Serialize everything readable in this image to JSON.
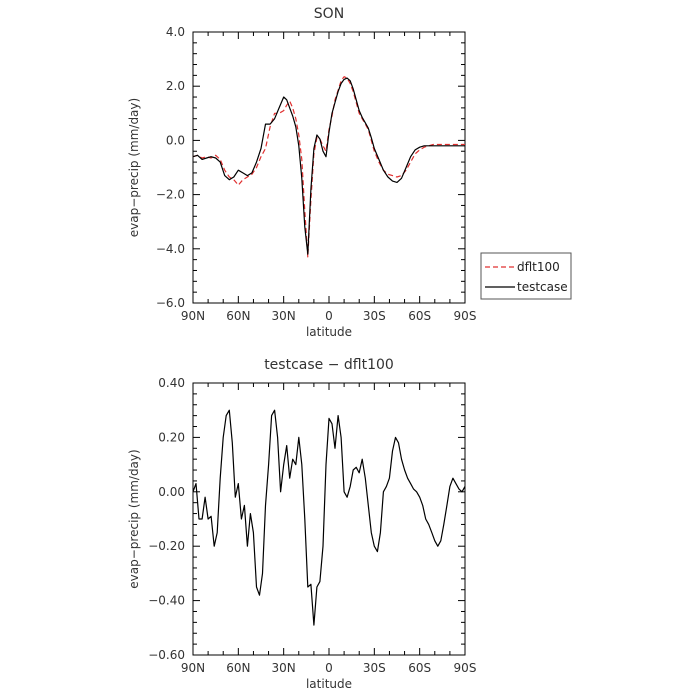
{
  "chart_data": [
    {
      "type": "line",
      "title": "SON",
      "xlabel": "latitude",
      "ylabel": "evap−precip (mm/day)",
      "xlim": [
        90,
        -90
      ],
      "ylim": [
        -6,
        4
      ],
      "xticks": [
        "90N",
        "60N",
        "30N",
        "0",
        "30S",
        "60S",
        "90S"
      ],
      "yticks": [
        "−6.0",
        "−4.0",
        "−2.0",
        "0.0",
        "2.0",
        "4.0"
      ],
      "legend": {
        "position": "outside-right",
        "entries": [
          "dflt100",
          "testcase"
        ]
      },
      "series": [
        {
          "name": "dflt100",
          "style": "dashed",
          "color": "#e03030",
          "x": [
            90,
            87,
            84,
            81,
            78,
            75,
            72,
            69,
            66,
            63,
            60,
            57,
            54,
            51,
            48,
            45,
            42,
            39,
            36,
            33,
            30,
            28,
            26,
            24,
            22,
            20,
            18,
            16,
            14,
            12,
            10,
            8,
            6,
            4,
            2,
            0,
            -2,
            -4,
            -6,
            -8,
            -10,
            -12,
            -14,
            -16,
            -18,
            -20,
            -22,
            -24,
            -26,
            -28,
            -30,
            -33,
            -36,
            -39,
            -42,
            -45,
            -48,
            -51,
            -54,
            -57,
            -60,
            -63,
            -66,
            -69,
            -72,
            -75,
            -78,
            -81,
            -84,
            -87,
            -90
          ],
          "y": [
            -0.6,
            -0.55,
            -0.65,
            -0.6,
            -0.65,
            -0.55,
            -0.7,
            -1.1,
            -1.35,
            -1.45,
            -1.65,
            -1.45,
            -1.35,
            -1.25,
            -1.0,
            -0.6,
            -0.3,
            0.5,
            1.0,
            1.0,
            1.1,
            1.3,
            1.45,
            1.2,
            0.8,
            0.2,
            -0.7,
            -2.6,
            -4.3,
            -2.2,
            -0.5,
            0.1,
            0.05,
            -0.2,
            -0.4,
            0.4,
            0.9,
            1.5,
            1.85,
            2.2,
            2.35,
            2.3,
            2.1,
            1.8,
            1.4,
            1.0,
            0.8,
            0.6,
            0.4,
            0.0,
            -0.4,
            -0.8,
            -1.1,
            -1.25,
            -1.3,
            -1.35,
            -1.3,
            -1.1,
            -0.8,
            -0.5,
            -0.35,
            -0.25,
            -0.2,
            -0.15,
            -0.15,
            -0.15,
            -0.15,
            -0.15,
            -0.15,
            -0.15,
            -0.15
          ]
        },
        {
          "name": "testcase",
          "style": "solid",
          "color": "#000000",
          "x": [
            90,
            87,
            84,
            81,
            78,
            75,
            72,
            69,
            66,
            63,
            60,
            57,
            54,
            51,
            48,
            45,
            42,
            39,
            36,
            33,
            30,
            28,
            26,
            24,
            22,
            20,
            18,
            16,
            14,
            12,
            10,
            8,
            6,
            4,
            2,
            0,
            -2,
            -4,
            -6,
            -8,
            -10,
            -12,
            -14,
            -16,
            -18,
            -20,
            -22,
            -24,
            -26,
            -28,
            -30,
            -33,
            -36,
            -39,
            -42,
            -45,
            -48,
            -51,
            -54,
            -57,
            -60,
            -63,
            -66,
            -69,
            -72,
            -75,
            -78,
            -81,
            -84,
            -87,
            -90
          ],
          "y": [
            -0.6,
            -0.55,
            -0.7,
            -0.65,
            -0.6,
            -0.65,
            -0.8,
            -1.3,
            -1.45,
            -1.35,
            -1.1,
            -1.2,
            -1.3,
            -1.2,
            -0.8,
            -0.3,
            0.6,
            0.6,
            0.8,
            1.2,
            1.6,
            1.5,
            1.2,
            0.9,
            0.5,
            -0.2,
            -1.4,
            -3.2,
            -4.2,
            -1.8,
            -0.3,
            0.2,
            0.05,
            -0.4,
            -0.6,
            0.3,
            1.0,
            1.4,
            1.8,
            2.1,
            2.25,
            2.3,
            2.2,
            1.9,
            1.5,
            1.1,
            0.85,
            0.65,
            0.45,
            0.1,
            -0.3,
            -0.7,
            -1.1,
            -1.35,
            -1.5,
            -1.55,
            -1.4,
            -1.0,
            -0.6,
            -0.35,
            -0.25,
            -0.2,
            -0.2,
            -0.2,
            -0.2,
            -0.2,
            -0.2,
            -0.2,
            -0.2,
            -0.2,
            -0.2
          ]
        }
      ]
    },
    {
      "type": "line",
      "title": "testcase − dflt100",
      "xlabel": "latitude",
      "ylabel": "evap−precip (mm/day)",
      "xlim": [
        90,
        -90
      ],
      "ylim": [
        -0.6,
        0.4
      ],
      "xticks": [
        "90N",
        "60N",
        "30N",
        "0",
        "30S",
        "60S",
        "90S"
      ],
      "yticks": [
        "−0.60",
        "−0.40",
        "−0.20",
        "0.00",
        "0.20",
        "0.40"
      ],
      "series": [
        {
          "name": "testcase − dflt100",
          "style": "solid",
          "color": "#000000",
          "x": [
            90,
            88,
            86,
            84,
            82,
            80,
            78,
            76,
            74,
            72,
            70,
            68,
            66,
            64,
            62,
            60,
            58,
            56,
            54,
            52,
            50,
            48,
            46,
            44,
            42,
            40,
            38,
            36,
            34,
            32,
            30,
            28,
            26,
            24,
            22,
            20,
            18,
            16,
            14,
            12,
            10,
            8,
            6,
            4,
            2,
            0,
            -2,
            -4,
            -6,
            -8,
            -10,
            -12,
            -14,
            -16,
            -18,
            -20,
            -22,
            -24,
            -26,
            -28,
            -30,
            -32,
            -34,
            -36,
            -38,
            -40,
            -42,
            -44,
            -46,
            -48,
            -50,
            -52,
            -54,
            -56,
            -58,
            -60,
            -62,
            -64,
            -66,
            -68,
            -70,
            -72,
            -74,
            -76,
            -78,
            -80,
            -82,
            -84,
            -86,
            -88,
            -90
          ],
          "y": [
            0.0,
            0.03,
            -0.1,
            -0.1,
            -0.02,
            -0.1,
            -0.09,
            -0.2,
            -0.15,
            0.05,
            0.2,
            0.28,
            0.3,
            0.18,
            -0.02,
            0.03,
            -0.1,
            -0.05,
            -0.2,
            -0.08,
            -0.15,
            -0.35,
            -0.38,
            -0.3,
            -0.05,
            0.1,
            0.28,
            0.3,
            0.2,
            0.0,
            0.1,
            0.17,
            0.05,
            0.12,
            0.1,
            0.2,
            0.1,
            -0.1,
            -0.35,
            -0.34,
            -0.49,
            -0.35,
            -0.33,
            -0.2,
            0.1,
            0.27,
            0.25,
            0.16,
            0.28,
            0.2,
            0.0,
            -0.02,
            0.02,
            0.08,
            0.09,
            0.07,
            0.12,
            0.05,
            -0.05,
            -0.15,
            -0.2,
            -0.22,
            -0.15,
            0.0,
            0.02,
            0.05,
            0.15,
            0.2,
            0.18,
            0.12,
            0.08,
            0.05,
            0.03,
            0.01,
            0.0,
            -0.02,
            -0.05,
            -0.1,
            -0.12,
            -0.15,
            -0.18,
            -0.2,
            -0.18,
            -0.12,
            -0.05,
            0.02,
            0.05,
            0.03,
            0.01,
            0.0,
            0.02
          ]
        }
      ]
    }
  ]
}
